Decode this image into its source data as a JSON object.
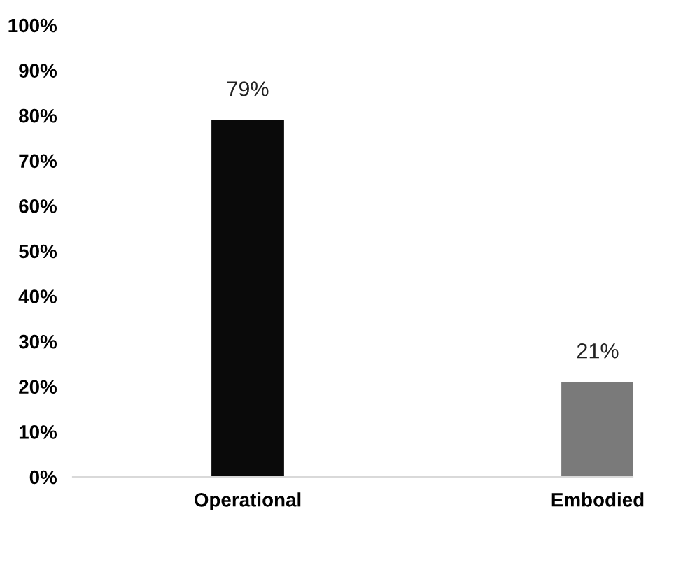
{
  "chart_data": {
    "type": "bar",
    "categories": [
      "Operational",
      "Embodied"
    ],
    "values": [
      79,
      21
    ],
    "colors": [
      "#0a0a0a",
      "#7a7a7a"
    ],
    "value_labels": [
      "79%",
      "21%"
    ],
    "ylim": [
      0,
      100
    ],
    "yticks": [
      {
        "value": 0,
        "label": "0%"
      },
      {
        "value": 10,
        "label": "10%"
      },
      {
        "value": 20,
        "label": "20%"
      },
      {
        "value": 30,
        "label": "30%"
      },
      {
        "value": 40,
        "label": "40%"
      },
      {
        "value": 50,
        "label": "50%"
      },
      {
        "value": 60,
        "label": "60%"
      },
      {
        "value": 70,
        "label": "70%"
      },
      {
        "value": 80,
        "label": "80%"
      },
      {
        "value": 90,
        "label": "90%"
      },
      {
        "value": 100,
        "label": "100%"
      }
    ],
    "grid": false,
    "legend": false
  }
}
